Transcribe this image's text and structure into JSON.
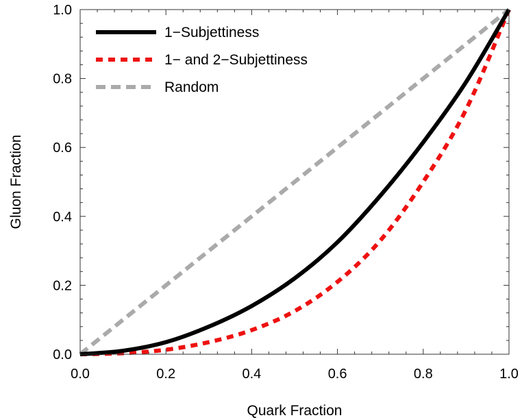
{
  "chart_data": {
    "type": "line",
    "title": "",
    "xlabel": "Quark Fraction",
    "ylabel": "Gluon Fraction",
    "xlim": [
      0,
      1
    ],
    "ylim": [
      0,
      1
    ],
    "xticks": [
      "0.0",
      "0.2",
      "0.4",
      "0.6",
      "0.8",
      "1.0"
    ],
    "yticks": [
      "0.0",
      "0.2",
      "0.4",
      "0.6",
      "0.8",
      "1.0"
    ],
    "grid": false,
    "legend_position": "top-left",
    "series": [
      {
        "name": "1−Subjettiness",
        "color": "#000000",
        "style": "solid",
        "x": [
          0,
          0.1,
          0.2,
          0.3,
          0.4,
          0.5,
          0.6,
          0.7,
          0.8,
          0.9,
          1.0
        ],
        "y": [
          0,
          0.01,
          0.035,
          0.08,
          0.14,
          0.22,
          0.325,
          0.46,
          0.615,
          0.79,
          1.0
        ]
      },
      {
        "name": "1− and 2−Subjettiness",
        "color": "#ee1111",
        "style": "dashed",
        "x": [
          0,
          0.1,
          0.2,
          0.3,
          0.4,
          0.5,
          0.6,
          0.7,
          0.8,
          0.9,
          1.0
        ],
        "y": [
          0,
          0.003,
          0.013,
          0.035,
          0.07,
          0.125,
          0.21,
          0.33,
          0.5,
          0.71,
          1.0
        ]
      },
      {
        "name": "Random",
        "color": "#aaaaaa",
        "style": "dashed",
        "x": [
          0,
          1
        ],
        "y": [
          0,
          1
        ]
      }
    ]
  }
}
